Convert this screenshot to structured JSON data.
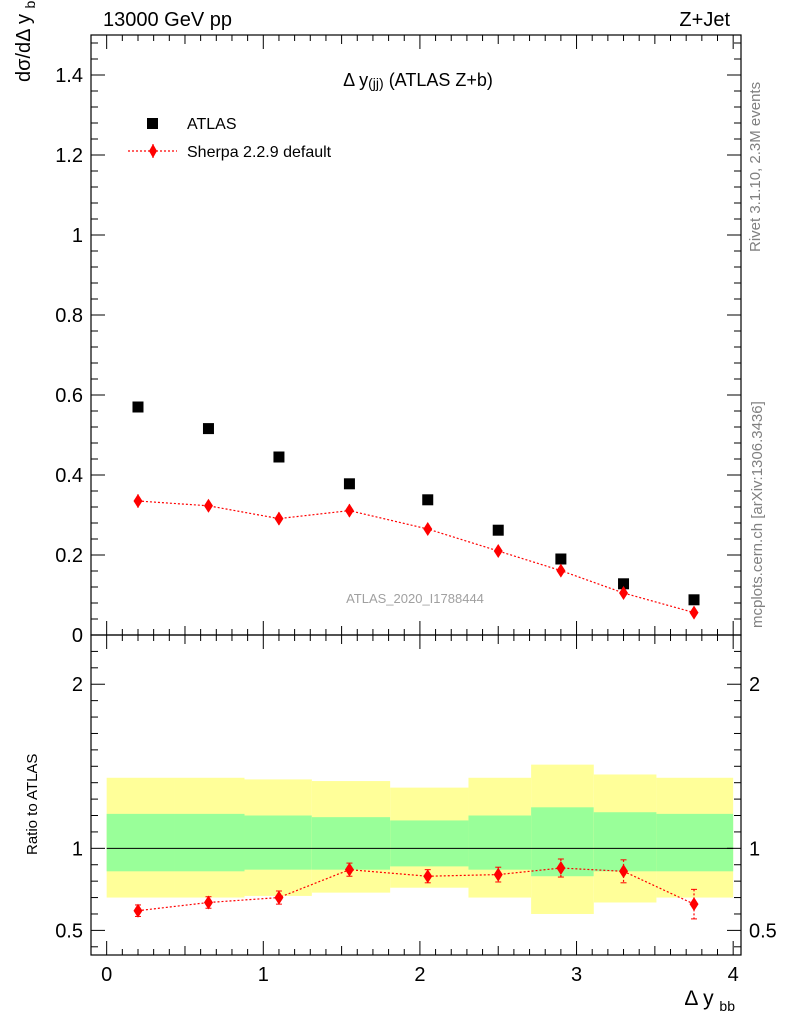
{
  "header": {
    "energy_label": "13000 GeV pp",
    "process_label": "Z+Jet",
    "rivet_label": "Rivet 3.1.10,  2.3M events",
    "mcplots_label": "mcplots.cern.ch [arXiv:1306.3436]",
    "analysis_label": "ATLAS_2020_I1788444"
  },
  "chart_data": [
    {
      "type": "scatter",
      "title": "Δ y(jj) (ATLAS Z+b)",
      "ylabel": "dσ/dΔ y_bb",
      "xlim": [
        -0.1,
        4.05
      ],
      "ylim": [
        0,
        1.5
      ],
      "y_ticks": [
        "0",
        "0.2",
        "0.4",
        "0.6",
        "0.8",
        "1",
        "1.2",
        "1.4"
      ],
      "legend_position": "top-left",
      "series": [
        {
          "name": "ATLAS",
          "marker": "square",
          "color": "#000000",
          "x": [
            0.2,
            0.65,
            1.1,
            1.55,
            2.05,
            2.5,
            2.9,
            3.3,
            3.75
          ],
          "y": [
            0.57,
            0.516,
            0.445,
            0.378,
            0.338,
            0.262,
            0.19,
            0.128,
            0.088
          ]
        },
        {
          "name": "Sherpa 2.2.9 default",
          "marker": "diamond",
          "line": "dotted",
          "color": "#ff0000",
          "x": [
            0.2,
            0.65,
            1.1,
            1.55,
            2.05,
            2.5,
            2.9,
            3.3,
            3.75
          ],
          "y": [
            0.335,
            0.323,
            0.291,
            0.311,
            0.265,
            0.21,
            0.161,
            0.105,
            0.056
          ],
          "yerr": [
            0.017,
            0.015,
            0.016,
            0.016,
            0.013,
            0.012,
            0.01,
            0.009,
            0.008
          ]
        }
      ]
    },
    {
      "type": "scatter",
      "ylabel": "Ratio to ATLAS",
      "xlabel": "Δ y_bb",
      "xlim": [
        -0.1,
        4.05
      ],
      "ylim": [
        0.35,
        2.3
      ],
      "x_ticks": [
        "0",
        "1",
        "2",
        "3",
        "4"
      ],
      "y_ticks": [
        "0.5",
        "1",
        "2"
      ],
      "reference_line": 1,
      "bins": [
        {
          "lo": 0.0,
          "hi": 0.43,
          "yellow": [
            0.7,
            1.43
          ],
          "green": [
            0.86,
            1.21
          ]
        },
        {
          "lo": 0.43,
          "hi": 0.88,
          "yellow": [
            0.7,
            1.43
          ],
          "green": [
            0.86,
            1.21
          ]
        },
        {
          "lo": 0.88,
          "hi": 1.31,
          "yellow": [
            0.71,
            1.42
          ],
          "green": [
            0.87,
            1.2
          ]
        },
        {
          "lo": 1.31,
          "hi": 1.81,
          "yellow": [
            0.73,
            1.41
          ],
          "green": [
            0.87,
            1.19
          ]
        },
        {
          "lo": 1.81,
          "hi": 2.31,
          "yellow": [
            0.76,
            1.37
          ],
          "green": [
            0.89,
            1.17
          ]
        },
        {
          "lo": 2.31,
          "hi": 2.71,
          "yellow": [
            0.7,
            1.43
          ],
          "green": [
            0.87,
            1.2
          ]
        },
        {
          "lo": 2.71,
          "hi": 3.11,
          "yellow": [
            0.6,
            1.51
          ],
          "green": [
            0.83,
            1.25
          ]
        },
        {
          "lo": 3.11,
          "hi": 3.51,
          "yellow": [
            0.67,
            1.45
          ],
          "green": [
            0.86,
            1.22
          ]
        },
        {
          "lo": 3.51,
          "hi": 4.0,
          "yellow": [
            0.7,
            1.43
          ],
          "green": [
            0.86,
            1.21
          ]
        }
      ],
      "series": [
        {
          "name": "Sherpa 2.2.9 default",
          "x": [
            0.2,
            0.65,
            1.1,
            1.55,
            2.05,
            2.5,
            2.9,
            3.3,
            3.75
          ],
          "y": [
            0.62,
            0.67,
            0.7,
            0.87,
            0.83,
            0.84,
            0.88,
            0.86,
            0.66
          ],
          "yerr": [
            0.035,
            0.035,
            0.04,
            0.04,
            0.04,
            0.045,
            0.055,
            0.07,
            0.09
          ],
          "color": "#ff0000"
        }
      ]
    }
  ]
}
